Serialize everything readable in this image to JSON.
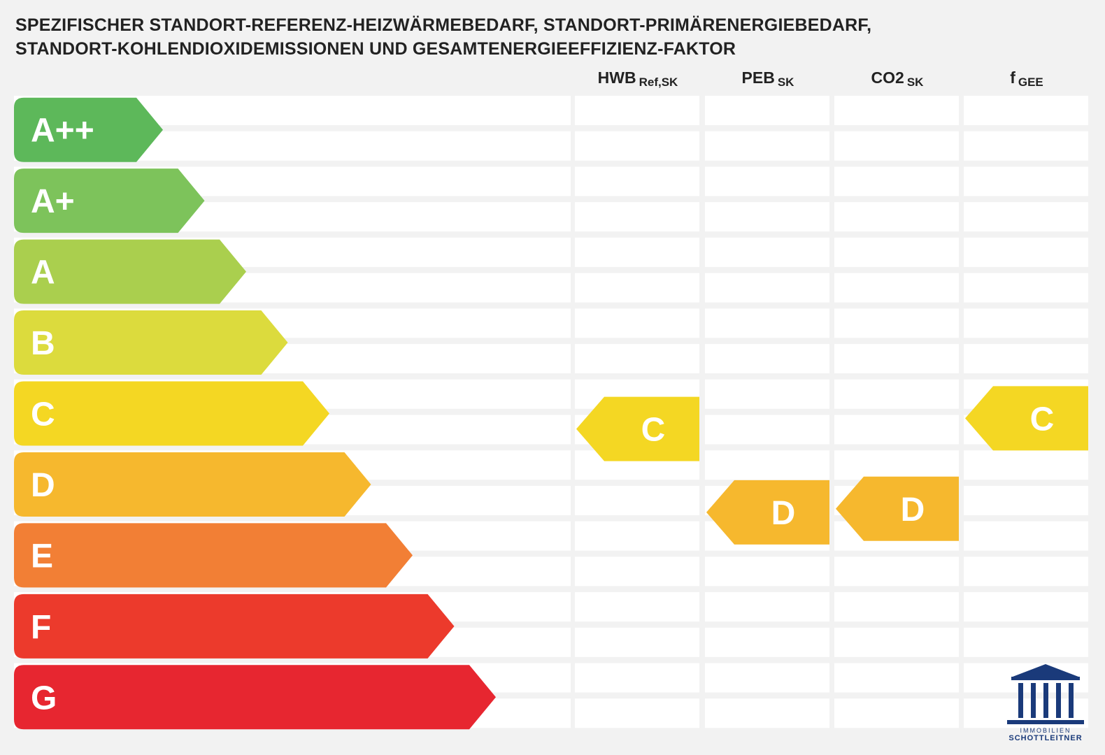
{
  "title_line1": "SPEZIFISCHER STANDORT-REFERENZ-HEIZWÄRMEBEDARF, STANDORT-PRIMÄRENERGIEBEDARF,",
  "title_line2": "STANDORT-KOHLENDIOXIDEMISSIONEN UND GESAMTENERGIEEFFIZIENZ-FAKTOR",
  "columns": [
    {
      "main": "HWB",
      "sub": "Ref,SK"
    },
    {
      "main": "PEB",
      "sub": "SK"
    },
    {
      "main": "CO2",
      "sub": "SK"
    },
    {
      "main": "f",
      "sub": "GEE"
    }
  ],
  "chart_data": {
    "type": "table",
    "classes": [
      {
        "label": "A++",
        "color": "#5db85a"
      },
      {
        "label": "A+",
        "color": "#7dc35b"
      },
      {
        "label": "A",
        "color": "#aacf4e"
      },
      {
        "label": "B",
        "color": "#dcdb3d"
      },
      {
        "label": "C",
        "color": "#f4d723"
      },
      {
        "label": "D",
        "color": "#f6b82e"
      },
      {
        "label": "E",
        "color": "#f27f35"
      },
      {
        "label": "F",
        "color": "#ec3a2c"
      },
      {
        "label": "G",
        "color": "#e72630"
      }
    ],
    "ratings": [
      {
        "column": "HWB Ref,SK",
        "class": "C",
        "color": "#f4d723"
      },
      {
        "column": "PEB SK",
        "class": "D",
        "color": "#f6b82e"
      },
      {
        "column": "CO2 SK",
        "class": "D",
        "color": "#f6b82e"
      },
      {
        "column": "f GEE",
        "class": "C",
        "color": "#f4d723"
      }
    ]
  },
  "logo": {
    "line1": "IMMOBILIEN",
    "line2": "SCHOTTLEITNER",
    "color": "#1a3a7a"
  }
}
